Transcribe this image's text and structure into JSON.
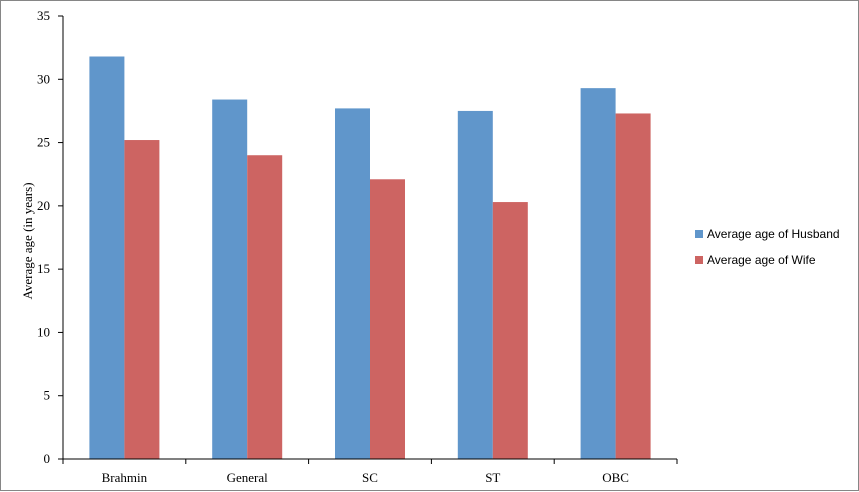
{
  "chart_data": {
    "type": "bar",
    "title": "",
    "xlabel": "",
    "ylabel": "Average age (in years)",
    "ylim": [
      0,
      35
    ],
    "yticks": [
      0,
      5,
      10,
      15,
      20,
      25,
      30,
      35
    ],
    "categories": [
      "Brahmin",
      "General",
      "SC",
      "ST",
      "OBC"
    ],
    "series": [
      {
        "name": "Average age of Husband",
        "color": "#6096CB",
        "values": [
          31.8,
          28.4,
          27.7,
          27.5,
          29.3
        ]
      },
      {
        "name": "Average age of Wife",
        "color": "#CD6462",
        "values": [
          25.2,
          24.0,
          22.1,
          20.3,
          27.3
        ]
      }
    ],
    "grid": false,
    "legend": "right"
  }
}
